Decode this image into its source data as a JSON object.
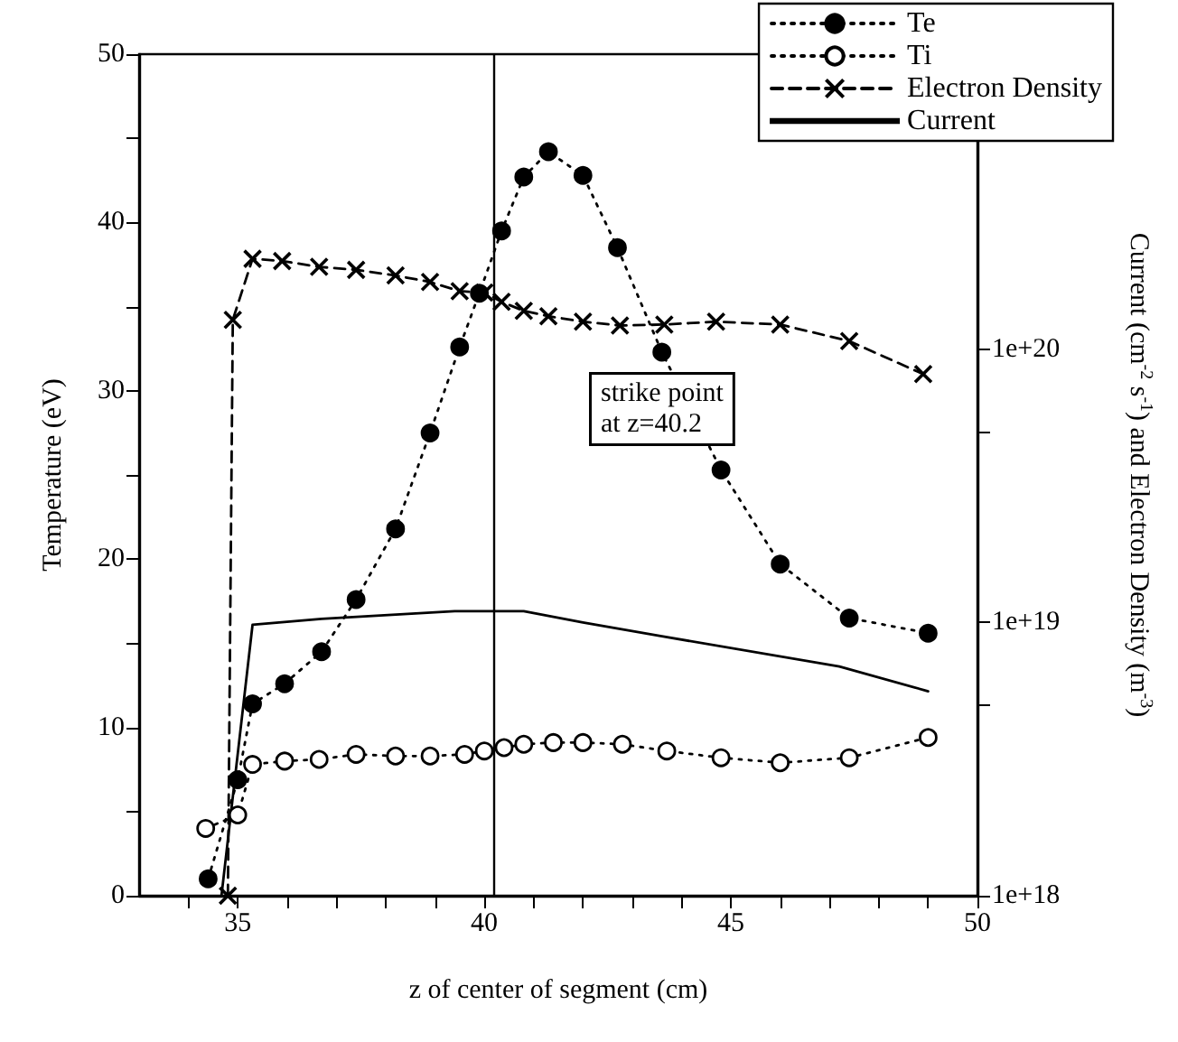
{
  "chart_data": {
    "type": "line",
    "xlabel": "z of center of segment (cm)",
    "ylabel": "Temperature (eV)",
    "y2label": "Current (cm$^{-2}$ s$^{-1}$) and Electron Density (m$^{-3}$)",
    "xlim": [
      33,
      50
    ],
    "xticks": [
      {
        "value": 34,
        "label": null
      },
      35,
      {
        "value": 36,
        "label": null
      },
      {
        "value": 37,
        "label": null
      },
      {
        "value": 38,
        "label": null
      },
      {
        "value": 39,
        "label": null
      },
      40,
      {
        "value": 41,
        "label": null
      },
      {
        "value": 42,
        "label": null
      },
      {
        "value": 43,
        "label": null
      },
      {
        "value": 44,
        "label": null
      },
      45,
      {
        "value": 46,
        "label": null
      },
      {
        "value": 47,
        "label": null
      },
      {
        "value": 48,
        "label": null
      },
      {
        "value": 49,
        "label": null
      },
      50
    ],
    "ylim": [
      0,
      50
    ],
    "yticks": [
      0,
      {
        "value": 5,
        "label": null
      },
      10,
      {
        "value": 15,
        "label": null
      },
      20,
      {
        "value": 25,
        "label": null
      },
      30,
      {
        "value": 35,
        "label": null
      },
      40,
      {
        "value": 45,
        "label": null
      },
      50
    ],
    "y2lim": [
      1e+18,
      1.2e+21
    ],
    "y2ticks": [
      {
        "value": 1e+18,
        "label": "1e+18"
      },
      {
        "value": 5e+18,
        "label": null
      },
      {
        "value": 1e+19,
        "label": "1e+19"
      },
      {
        "value": 5e+19,
        "label": null
      },
      {
        "value": 1e+20,
        "label": "1e+20"
      }
    ],
    "log": "y2",
    "grid": false,
    "legend": "top right",
    "annotations": [
      "strike point\nat z=40.2"
    ],
    "ref_lines": [
      {
        "axis": "x",
        "value": 40.2,
        "label": null,
        "color": "#000000",
        "line_style": "solid"
      }
    ],
    "series": [
      {
        "name": "Te",
        "color": "#000000",
        "marker": "circle",
        "line_style": "dotted",
        "x": [
          34.4,
          35.0,
          35.3,
          35.95,
          36.7,
          37.4,
          38.2,
          38.9,
          39.5,
          39.9,
          40.35,
          40.8,
          41.3,
          42.0,
          42.7,
          43.6,
          44.8,
          46.0,
          47.4,
          49.0
        ],
        "values": [
          1.0,
          6.9,
          11.4,
          12.6,
          14.5,
          17.6,
          21.8,
          27.5,
          32.6,
          35.8,
          39.5,
          42.7,
          44.2,
          42.8,
          38.5,
          32.3,
          25.3,
          19.7,
          16.5,
          15.6
        ]
      },
      {
        "name": "Ti",
        "color": "#000000",
        "marker": "circle",
        "line_style": "dotted",
        "x": [
          34.35,
          35.0,
          35.3,
          35.95,
          36.65,
          37.4,
          38.2,
          38.9,
          39.6,
          40.0,
          40.4,
          40.8,
          41.4,
          42.0,
          42.8,
          43.7,
          44.8,
          46.0,
          47.4,
          49.0
        ],
        "values": [
          4.0,
          4.8,
          7.8,
          8.0,
          8.1,
          8.4,
          8.3,
          8.3,
          8.4,
          8.6,
          8.8,
          9.0,
          9.1,
          9.1,
          9.0,
          8.6,
          8.2,
          7.9,
          8.2,
          9.4
        ]
      },
      {
        "name": "Electron Density",
        "color": "#000000",
        "marker": "cross",
        "line_style": "dashed",
        "axis": "y2",
        "x": [
          34.8,
          34.9,
          35.3,
          35.9,
          36.65,
          37.4,
          38.2,
          38.9,
          39.5,
          40.0,
          40.35,
          40.8,
          41.3,
          42.0,
          42.75,
          43.65,
          44.7,
          46.0,
          47.4,
          48.9
        ],
        "values": [
          1e+18,
          1.28e+20,
          2.14e+20,
          2.1e+20,
          2e+20,
          1.95e+20,
          1.86e+20,
          1.76e+20,
          1.63e+20,
          1.61e+20,
          1.49e+20,
          1.38e+20,
          1.32e+20,
          1.26e+20,
          1.22e+20,
          1.23e+20,
          1.26e+20,
          1.23e+20,
          1.07e+20,
          8.1e+19
        ]
      },
      {
        "name": "Current",
        "color": "#000000",
        "marker": "none",
        "line_style": "solid",
        "axis": "y2",
        "x": [
          34.67,
          35.3,
          36.7,
          39.4,
          40.8,
          42.0,
          43.6,
          47.2,
          49.0
        ],
        "values": [
          1e+18,
          9.8e+18,
          1.03e+19,
          1.1e+19,
          1.1e+19,
          1e+19,
          8.9e+18,
          6.9e+18,
          5.6e+18
        ]
      }
    ]
  }
}
